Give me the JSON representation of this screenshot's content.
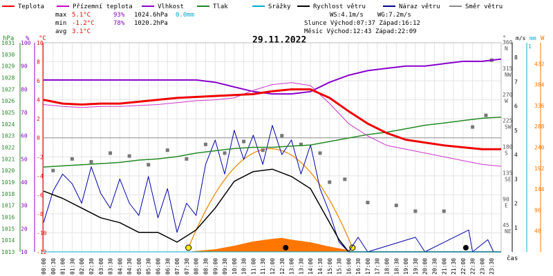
{
  "chart_data": {
    "type": "line",
    "title": "29.11.2022",
    "legend": [
      {
        "label": "Teplota",
        "color": "#ff0000"
      },
      {
        "label": "Přízemní teplota",
        "color": "#cc00cc"
      },
      {
        "label": "Vlhkost",
        "color": "#8800cc"
      },
      {
        "label": "Tlak",
        "color": "#228822"
      },
      {
        "label": "Srážky",
        "color": "#00aacc"
      },
      {
        "label": "Rychlost větru",
        "color": "#000000"
      },
      {
        "label": "Náraz větru",
        "color": "#000088"
      },
      {
        "label": "Směr větru",
        "color": "#888888"
      }
    ],
    "stats": {
      "row_max": {
        "label": "max",
        "temp": "5.1°C",
        "hum": "93%",
        "press": "1024.6hPa",
        "rain": "0.0mm"
      },
      "row_min": {
        "label": "min",
        "temp": "-1.2°C",
        "hum": "78%",
        "press": "1020.2hPa"
      },
      "row_avg": {
        "label": "avg",
        "temp": "3.1°C"
      },
      "ws": "WS:4.1m/s",
      "wg": "WG:7.2m/s",
      "sun": "Slunce Východ:07:37  Západ:16:12",
      "moon": "Měsíc  Východ:12:43  Západ:22:09"
    },
    "axis_units": {
      "hpa": "hPa",
      "pct": "%",
      "degc": "°C",
      "deg": "°",
      "ms": "m/s",
      "mm": "mm",
      "w": "W",
      "cas": "čas"
    },
    "pressure_ticks": [
      "1031",
      "1030",
      "1029",
      "1028",
      "1027",
      "1026",
      "1025",
      "1024",
      "1023",
      "1022",
      "1021",
      "1020",
      "1019",
      "1018",
      "1017",
      "1016",
      "1015",
      "1014",
      "1013"
    ],
    "humidity_ticks": [
      "100",
      "90",
      "80",
      "70",
      "60",
      "50",
      "40",
      "30",
      "20",
      "10"
    ],
    "temp_ticks": [
      "10",
      "8",
      "6",
      "4",
      "2",
      "0",
      "-2",
      "-4",
      "-6",
      "-8",
      "-10",
      "-12"
    ],
    "dir_ticks": [
      {
        "deg": "360",
        "name": "N"
      },
      {
        "deg": "315",
        "name": "NW"
      },
      {
        "deg": "270",
        "name": "W"
      },
      {
        "deg": "225",
        "name": "SW"
      },
      {
        "deg": "180",
        "name": "S"
      },
      {
        "deg": "135",
        "name": "SE"
      },
      {
        "deg": "90",
        "name": "E"
      },
      {
        "deg": "45",
        "name": "NE"
      }
    ],
    "wind_ticks": [
      "8",
      "7",
      "6",
      "5",
      "4",
      "3",
      "2",
      "1"
    ],
    "rain_ticks": [
      "1"
    ],
    "rad_ticks": [
      "432",
      "384",
      "336",
      "288",
      "240",
      "192",
      "144",
      "96",
      "48"
    ],
    "times": [
      "00:00",
      "00:30",
      "01:00",
      "01:30",
      "02:00",
      "02:30",
      "03:00",
      "03:30",
      "04:00",
      "04:30",
      "05:00",
      "05:30",
      "06:00",
      "06:30",
      "07:00",
      "07:30",
      "08:00",
      "08:30",
      "09:00",
      "09:30",
      "10:00",
      "10:30",
      "11:00",
      "11:30",
      "12:00",
      "12:30",
      "13:00",
      "13:30",
      "14:00",
      "14:30",
      "15:00",
      "15:30",
      "16:00",
      "16:30",
      "17:00",
      "17:30",
      "18:00",
      "18:30",
      "19:00",
      "19:30",
      "20:00",
      "20:30",
      "21:00",
      "21:30",
      "22:00",
      "22:30",
      "23:00",
      "23:30"
    ],
    "series": [
      {
        "name": "Teplota",
        "unit": "°C",
        "color": "#ee0000",
        "x": [
          0,
          1,
          2,
          3,
          4,
          5,
          6,
          7,
          8,
          9,
          10,
          11,
          12,
          13,
          14,
          15,
          16,
          17,
          18,
          19,
          20,
          21,
          22,
          23,
          24
        ],
        "y": [
          4.0,
          3.6,
          3.5,
          3.6,
          3.6,
          3.8,
          4.0,
          4.2,
          4.3,
          4.4,
          4.5,
          4.6,
          4.9,
          5.1,
          5.1,
          4.2,
          2.8,
          1.5,
          0.5,
          -0.2,
          -0.5,
          -0.8,
          -1.0,
          -1.2,
          -1.2
        ]
      },
      {
        "name": "Přízemní teplota",
        "unit": "°C",
        "color": "#cc33cc",
        "x": [
          0,
          1,
          2,
          3,
          4,
          5,
          6,
          7,
          8,
          9,
          10,
          11,
          12,
          13,
          14,
          15,
          16,
          17,
          18,
          19,
          20,
          21,
          22,
          23,
          24
        ],
        "y": [
          3.5,
          3.3,
          3.2,
          3.3,
          3.3,
          3.4,
          3.5,
          3.7,
          3.9,
          4.0,
          4.2,
          5.0,
          5.6,
          5.8,
          5.5,
          3.6,
          1.5,
          0.2,
          -0.8,
          -1.2,
          -1.6,
          -2.0,
          -2.4,
          -2.8,
          -3.0
        ]
      },
      {
        "name": "Vlhkost",
        "unit": "%",
        "color": "#8800cc",
        "x": [
          0,
          1,
          2,
          3,
          4,
          5,
          6,
          7,
          8,
          9,
          10,
          11,
          12,
          13,
          14,
          15,
          16,
          17,
          18,
          19,
          20,
          21,
          22,
          23,
          24
        ],
        "y": [
          84,
          84,
          84,
          84,
          84,
          84,
          84,
          84,
          84,
          83,
          81,
          79,
          78,
          78,
          79,
          83,
          86,
          88,
          89,
          90,
          90,
          91,
          92,
          92,
          93
        ]
      },
      {
        "name": "Tlak",
        "unit": "hPa",
        "color": "#228822",
        "x": [
          0,
          1,
          2,
          3,
          4,
          5,
          6,
          7,
          8,
          9,
          10,
          11,
          12,
          13,
          14,
          15,
          16,
          17,
          18,
          19,
          20,
          21,
          22,
          23,
          24
        ],
        "y": [
          1020.3,
          1020.4,
          1020.5,
          1020.6,
          1020.7,
          1020.9,
          1021.0,
          1021.2,
          1021.5,
          1021.7,
          1021.9,
          1022.0,
          1022.0,
          1022.1,
          1022.2,
          1022.5,
          1022.8,
          1023.1,
          1023.3,
          1023.6,
          1023.9,
          1024.1,
          1024.3,
          1024.5,
          1024.6
        ]
      },
      {
        "name": "Rychlost větru",
        "unit": "m/s",
        "color": "#000000",
        "x": [
          0,
          1,
          2,
          3,
          4,
          5,
          6,
          7,
          8,
          9,
          10,
          11,
          12,
          13,
          14,
          15,
          15.5,
          16,
          17,
          18,
          19,
          20,
          21,
          22,
          23,
          24
        ],
        "y": [
          2.5,
          2.2,
          1.8,
          1.4,
          1.2,
          0.8,
          0.8,
          0.4,
          0.9,
          1.8,
          2.9,
          3.3,
          3.4,
          3.1,
          2.6,
          1.2,
          0.5,
          0,
          0,
          0,
          0,
          0,
          0,
          0,
          0,
          0
        ]
      },
      {
        "name": "Náraz větru",
        "unit": "m/s",
        "color": "#0000aa",
        "x": [
          0,
          0.5,
          1,
          1.5,
          2,
          2.5,
          3,
          3.5,
          4,
          4.5,
          5,
          5.5,
          6,
          6.5,
          7,
          7.5,
          8,
          8.5,
          9,
          9.5,
          10,
          10.5,
          11,
          11.5,
          12,
          12.5,
          13,
          13.5,
          14,
          14.5,
          15,
          15.5,
          16,
          16.5,
          17,
          19.5,
          20,
          22.3,
          22.5,
          23.3,
          23.6,
          24
        ],
        "y": [
          1.2,
          2.5,
          3.2,
          2.8,
          2.0,
          3.5,
          2.4,
          1.8,
          3.0,
          2.0,
          1.5,
          3.1,
          1.4,
          2.6,
          0.8,
          2.0,
          1.5,
          3.6,
          4.6,
          3.2,
          5.0,
          3.8,
          4.8,
          3.6,
          5.2,
          4.0,
          4.6,
          3.2,
          4.4,
          2.6,
          1.6,
          0.4,
          0,
          0.6,
          0,
          0.6,
          0,
          0.9,
          0,
          0.5,
          0,
          0
        ]
      },
      {
        "name": "Směr větru",
        "unit": "°",
        "color": "#777777",
        "points": [
          [
            0.5,
            140
          ],
          [
            1.5,
            160
          ],
          [
            2.5,
            155
          ],
          [
            3.5,
            170
          ],
          [
            4.5,
            165
          ],
          [
            5.5,
            150
          ],
          [
            6.5,
            175
          ],
          [
            7.5,
            160
          ],
          [
            8.5,
            185
          ],
          [
            9.5,
            170
          ],
          [
            10.5,
            190
          ],
          [
            11.5,
            175
          ],
          [
            12.5,
            200
          ],
          [
            13.5,
            185
          ],
          [
            14.5,
            170
          ],
          [
            15.0,
            120
          ],
          [
            15.8,
            125
          ],
          [
            17.0,
            85
          ],
          [
            18.5,
            80
          ],
          [
            19.5,
            70
          ],
          [
            21.0,
            70
          ],
          [
            22.5,
            215
          ],
          [
            23.2,
            235
          ],
          [
            23.5,
            330
          ]
        ]
      },
      {
        "name": "Srážky",
        "unit": "mm",
        "color": "#00aacc",
        "x": [
          0,
          24
        ],
        "y": [
          0.0,
          0.0
        ]
      }
    ],
    "solar": {
      "unit": "W",
      "color": "#ff7700",
      "x": [
        7.6,
        8,
        9,
        10,
        11,
        12,
        12.5,
        13,
        14,
        15,
        16,
        16.2
      ],
      "y": [
        0,
        2,
        6,
        14,
        24,
        30,
        32,
        28,
        22,
        12,
        4,
        0
      ]
    },
    "sun_arc": {
      "rise": 7.6,
      "set": 16.2
    },
    "xlabel": "čas",
    "ylim": {
      "temp": [
        -12,
        10
      ],
      "hum": [
        10,
        100
      ],
      "press": [
        1013,
        1031
      ],
      "wind": [
        0,
        8.6
      ],
      "dir": [
        0,
        360
      ],
      "rad": [
        0,
        480
      ]
    }
  }
}
